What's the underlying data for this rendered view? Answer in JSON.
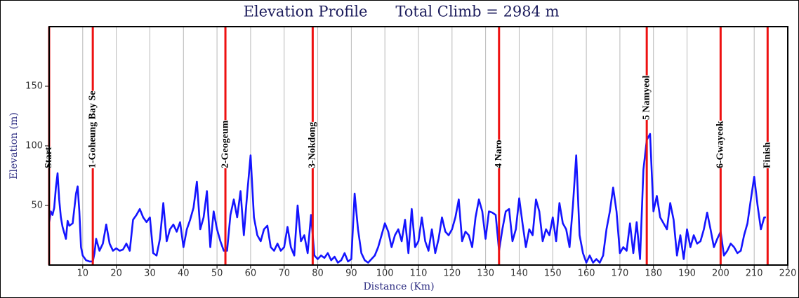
{
  "chart_data": {
    "type": "line",
    "title": "Elevation Profile",
    "subtitle": "Total Climb = 2984 m",
    "x_label": "Distance (Km)",
    "y_label": "Elevation (m)",
    "color": "#1414ff",
    "marker_color": "#ee1111",
    "grid": true,
    "xlim": [
      0,
      220
    ],
    "ylim": [
      0,
      200
    ],
    "xticks": [
      10,
      20,
      30,
      40,
      50,
      60,
      70,
      80,
      90,
      100,
      110,
      120,
      130,
      140,
      150,
      160,
      170,
      180,
      190,
      200,
      210,
      220
    ],
    "yticks": [
      50,
      100,
      150
    ],
    "markers": [
      {
        "label": "Start",
        "x": 0
      },
      {
        "label": "1-Goheung Bay Se",
        "x": 13
      },
      {
        "label": "2-Geogeum",
        "x": 52.5
      },
      {
        "label": "3-Nokdong",
        "x": 78.5
      },
      {
        "label": "4 Naro",
        "x": 134
      },
      {
        "label": "5 Namyeol",
        "x": 178
      },
      {
        "label": "6-Gwayeok",
        "x": 200
      },
      {
        "label": "Finish",
        "x": 214
      }
    ],
    "x": [
      0,
      0.5,
      1,
      1.5,
      2,
      2.5,
      3,
      3.5,
      4,
      5,
      5.5,
      6,
      7,
      8,
      8.5,
      9,
      9.5,
      10,
      11,
      12,
      13,
      13.5,
      14,
      15,
      16,
      17,
      18,
      19,
      20,
      21,
      22,
      23,
      24,
      25,
      26,
      27,
      28,
      29,
      30,
      31,
      32,
      33,
      34,
      35,
      36,
      37,
      38,
      39,
      40,
      41,
      42,
      43,
      44,
      45,
      46,
      47,
      48,
      49,
      50,
      51,
      52,
      53,
      54,
      55,
      56,
      57,
      58,
      59,
      60,
      61,
      62,
      63,
      64,
      65,
      66,
      67,
      68,
      69,
      70,
      71,
      72,
      73,
      74,
      75,
      76,
      77,
      78,
      79,
      80,
      81,
      82,
      83,
      84,
      85,
      86,
      87,
      88,
      89,
      90,
      91,
      92,
      93,
      94,
      95,
      96,
      97,
      98,
      99,
      100,
      101,
      102,
      103,
      104,
      105,
      106,
      107,
      108,
      109,
      110,
      111,
      112,
      113,
      114,
      115,
      116,
      117,
      118,
      119,
      120,
      121,
      122,
      123,
      124,
      125,
      126,
      127,
      128,
      129,
      130,
      131,
      132,
      133,
      134,
      135,
      136,
      137,
      138,
      139,
      140,
      141,
      142,
      143,
      144,
      145,
      146,
      147,
      148,
      149,
      150,
      151,
      152,
      153,
      154,
      155,
      156,
      157,
      158,
      159,
      160,
      161,
      162,
      163,
      164,
      165,
      166,
      167,
      168,
      169,
      170,
      171,
      172,
      173,
      174,
      175,
      176,
      177,
      178,
      179,
      180,
      181,
      182,
      183,
      184,
      185,
      186,
      187,
      188,
      189,
      190,
      191,
      192,
      193,
      194,
      195,
      196,
      197,
      198,
      199,
      200,
      201,
      202,
      203,
      204,
      205,
      206,
      207,
      208,
      209,
      210,
      211,
      212,
      213,
      213.5
    ],
    "values": [
      35,
      45,
      42,
      48,
      65,
      77,
      55,
      40,
      32,
      22,
      37,
      33,
      35,
      60,
      66,
      45,
      15,
      8,
      4,
      3,
      3,
      10,
      22,
      12,
      18,
      34,
      18,
      12,
      14,
      12,
      13,
      18,
      12,
      38,
      42,
      47,
      40,
      36,
      40,
      10,
      8,
      22,
      52,
      20,
      30,
      34,
      28,
      36,
      15,
      30,
      38,
      48,
      70,
      30,
      40,
      62,
      15,
      45,
      30,
      20,
      12,
      12,
      42,
      55,
      40,
      62,
      25,
      60,
      92,
      40,
      25,
      20,
      30,
      33,
      15,
      12,
      18,
      12,
      15,
      32,
      15,
      8,
      50,
      20,
      25,
      10,
      42,
      8,
      5,
      8,
      6,
      10,
      4,
      7,
      2,
      4,
      10,
      3,
      5,
      60,
      30,
      10,
      4,
      2,
      5,
      8,
      15,
      25,
      35,
      28,
      15,
      25,
      30,
      20,
      38,
      10,
      47,
      15,
      20,
      40,
      20,
      12,
      30,
      10,
      22,
      40,
      28,
      25,
      30,
      40,
      55,
      20,
      28,
      25,
      15,
      40,
      55,
      45,
      22,
      45,
      44,
      42,
      12,
      30,
      45,
      47,
      20,
      30,
      56,
      35,
      15,
      30,
      25,
      55,
      45,
      20,
      30,
      25,
      40,
      20,
      52,
      35,
      30,
      15,
      50,
      92,
      25,
      10,
      2,
      8,
      2,
      5,
      2,
      8,
      30,
      45,
      65,
      45,
      10,
      15,
      12,
      35,
      10,
      36,
      5,
      80,
      105,
      110,
      45,
      58,
      40,
      35,
      30,
      52,
      38,
      8,
      25,
      5,
      30,
      15,
      25,
      18,
      20,
      30,
      44,
      30,
      15,
      22,
      28,
      8,
      12,
      18,
      15,
      10,
      12,
      25,
      35,
      55,
      74,
      50,
      30,
      40,
      40
    ]
  }
}
